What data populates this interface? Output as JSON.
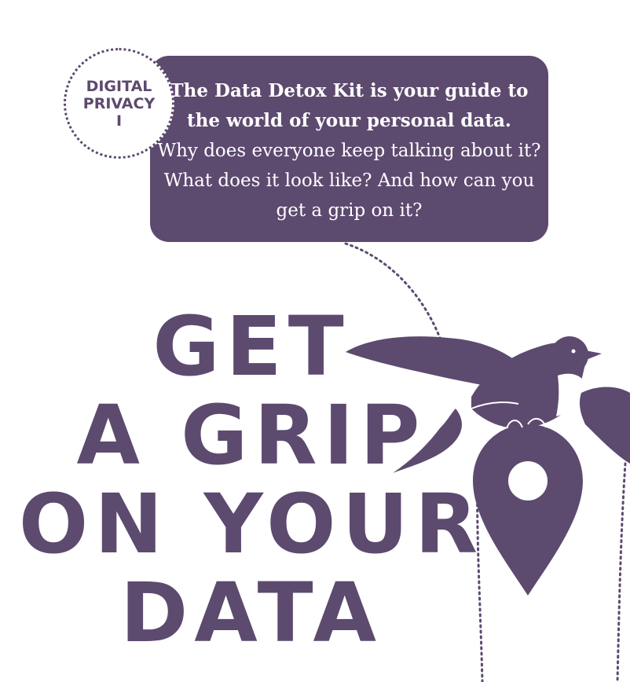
{
  "badge": {
    "line1": "DIGITAL",
    "line2": "PRIVACY",
    "line3": "I"
  },
  "intro": {
    "lead": "The Data Detox Kit is your guide to the world of your personal data.",
    "body": "Why does everyone keep talking about it? What does it look like? And how can you get a grip on it?"
  },
  "headline": {
    "line1": "GET",
    "line2": "A GRIP",
    "line3": "ON YOUR",
    "line4": "DATA"
  },
  "illustration": {
    "subject": "bird-carrying-location-pin",
    "icons": [
      "bird-icon",
      "location-pin-icon"
    ]
  },
  "colors": {
    "brand_purple": "#5d4a6f",
    "background": "#ffffff",
    "text_on_dark": "#ffffff"
  }
}
